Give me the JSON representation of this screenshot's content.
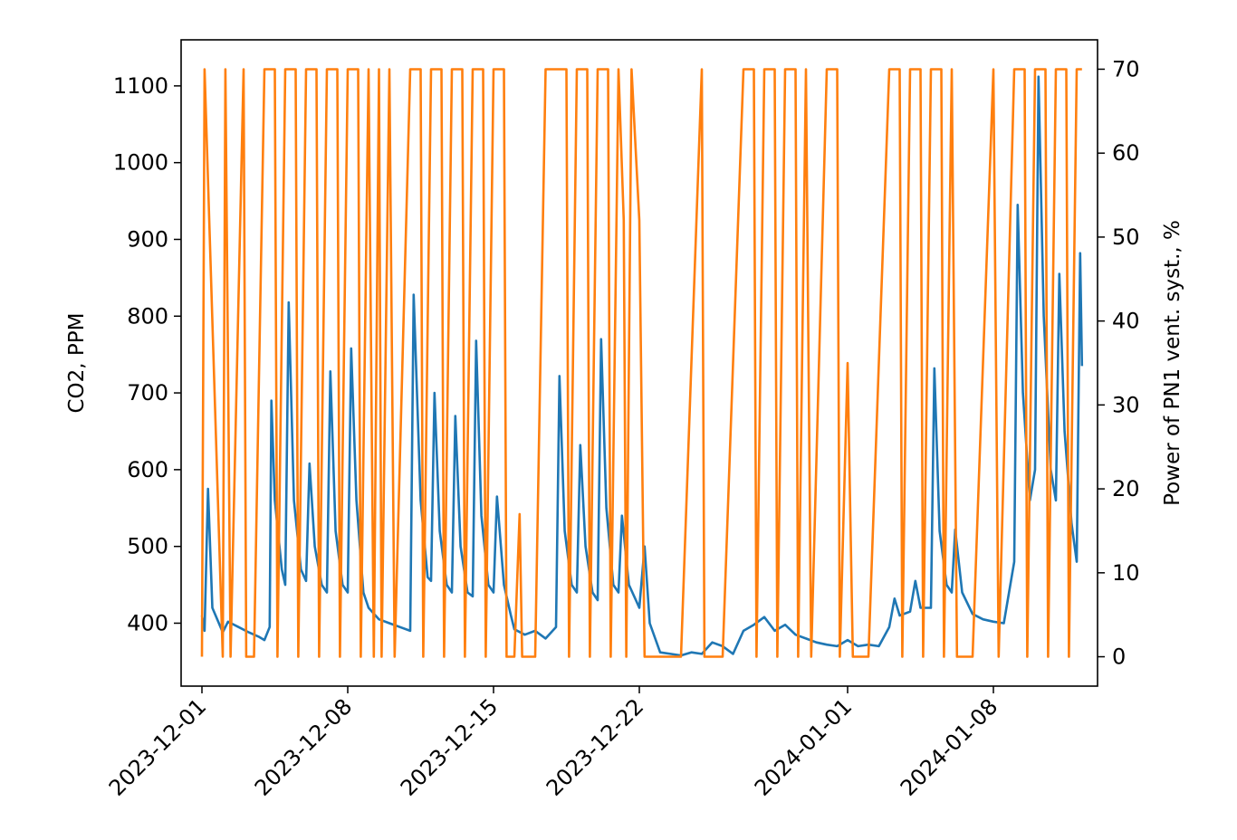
{
  "chart_data": {
    "type": "line",
    "title": "",
    "xlabel": "",
    "ylabel": "CO2, PPM",
    "y2label": "Power of PN1 vent. syst., %",
    "xlim": [
      "2023-11-30",
      "2024-01-13"
    ],
    "ylim": [
      318,
      1160
    ],
    "y2lim": [
      -3.5,
      73.5
    ],
    "x_ticks": [
      "2023-12-01",
      "2023-12-08",
      "2023-12-15",
      "2023-12-22",
      "2024-01-01",
      "2024-01-08"
    ],
    "y_ticks": [
      400,
      500,
      600,
      700,
      800,
      900,
      1000,
      1100
    ],
    "y2_ticks": [
      0,
      10,
      20,
      30,
      40,
      50,
      60,
      70
    ],
    "grid": false,
    "series": [
      {
        "axis": "left",
        "color": "#1f77b4",
        "points": [
          [
            "2023-12-01T00:00",
            410
          ],
          [
            "2023-12-01T03:00",
            390
          ],
          [
            "2023-12-01T07:00",
            575
          ],
          [
            "2023-12-01T12:00",
            420
          ],
          [
            "2023-12-02T00:00",
            388
          ],
          [
            "2023-12-02T06:00",
            402
          ],
          [
            "2023-12-02T18:00",
            395
          ],
          [
            "2023-12-03T06:00",
            388
          ],
          [
            "2023-12-03T18:00",
            382
          ],
          [
            "2023-12-04T00:00",
            378
          ],
          [
            "2023-12-04T06:00",
            395
          ],
          [
            "2023-12-04T08:00",
            690
          ],
          [
            "2023-12-04T12:00",
            560
          ],
          [
            "2023-12-04T20:00",
            470
          ],
          [
            "2023-12-05T00:00",
            450
          ],
          [
            "2023-12-05T04:00",
            818
          ],
          [
            "2023-12-05T10:00",
            560
          ],
          [
            "2023-12-05T18:00",
            470
          ],
          [
            "2023-12-06T00:00",
            455
          ],
          [
            "2023-12-06T04:00",
            608
          ],
          [
            "2023-12-06T10:00",
            500
          ],
          [
            "2023-12-06T18:00",
            450
          ],
          [
            "2023-12-07T00:00",
            440
          ],
          [
            "2023-12-07T04:00",
            728
          ],
          [
            "2023-12-07T10:00",
            520
          ],
          [
            "2023-12-07T18:00",
            450
          ],
          [
            "2023-12-08T00:00",
            440
          ],
          [
            "2023-12-08T04:00",
            758
          ],
          [
            "2023-12-08T10:00",
            560
          ],
          [
            "2023-12-08T18:00",
            440
          ],
          [
            "2023-12-09T00:00",
            420
          ],
          [
            "2023-12-09T12:00",
            405
          ],
          [
            "2023-12-10T00:00",
            400
          ],
          [
            "2023-12-10T12:00",
            395
          ],
          [
            "2023-12-11T00:00",
            390
          ],
          [
            "2023-12-11T04:00",
            828
          ],
          [
            "2023-12-11T12:00",
            560
          ],
          [
            "2023-12-11T20:00",
            460
          ],
          [
            "2023-12-12T00:00",
            455
          ],
          [
            "2023-12-12T04:00",
            700
          ],
          [
            "2023-12-12T10:00",
            520
          ],
          [
            "2023-12-12T18:00",
            450
          ],
          [
            "2023-12-13T00:00",
            440
          ],
          [
            "2023-12-13T04:00",
            670
          ],
          [
            "2023-12-13T10:00",
            500
          ],
          [
            "2023-12-13T18:00",
            440
          ],
          [
            "2023-12-14T00:00",
            435
          ],
          [
            "2023-12-14T04:00",
            768
          ],
          [
            "2023-12-14T10:00",
            540
          ],
          [
            "2023-12-14T18:00",
            450
          ],
          [
            "2023-12-15T00:00",
            440
          ],
          [
            "2023-12-15T04:00",
            565
          ],
          [
            "2023-12-15T12:00",
            450
          ],
          [
            "2023-12-15T20:00",
            410
          ],
          [
            "2023-12-16T00:00",
            392
          ],
          [
            "2023-12-16T12:00",
            385
          ],
          [
            "2023-12-17T00:00",
            390
          ],
          [
            "2023-12-17T12:00",
            380
          ],
          [
            "2023-12-18T00:00",
            395
          ],
          [
            "2023-12-18T04:00",
            722
          ],
          [
            "2023-12-18T10:00",
            520
          ],
          [
            "2023-12-18T18:00",
            450
          ],
          [
            "2023-12-19T00:00",
            440
          ],
          [
            "2023-12-19T04:00",
            632
          ],
          [
            "2023-12-19T10:00",
            500
          ],
          [
            "2023-12-19T18:00",
            440
          ],
          [
            "2023-12-20T00:00",
            430
          ],
          [
            "2023-12-20T04:00",
            770
          ],
          [
            "2023-12-20T10:00",
            550
          ],
          [
            "2023-12-20T18:00",
            450
          ],
          [
            "2023-12-21T00:00",
            440
          ],
          [
            "2023-12-21T04:00",
            540
          ],
          [
            "2023-12-21T12:00",
            450
          ],
          [
            "2023-12-21T20:00",
            430
          ],
          [
            "2023-12-22T00:00",
            420
          ],
          [
            "2023-12-22T06:00",
            500
          ],
          [
            "2023-12-22T12:00",
            400
          ],
          [
            "2023-12-23T00:00",
            362
          ],
          [
            "2023-12-23T12:00",
            360
          ],
          [
            "2023-12-24T00:00",
            358
          ],
          [
            "2023-12-24T12:00",
            362
          ],
          [
            "2023-12-25T00:00",
            360
          ],
          [
            "2023-12-25T12:00",
            375
          ],
          [
            "2023-12-26T00:00",
            370
          ],
          [
            "2023-12-26T12:00",
            360
          ],
          [
            "2023-12-27T00:00",
            390
          ],
          [
            "2023-12-27T12:00",
            398
          ],
          [
            "2023-12-28T00:00",
            408
          ],
          [
            "2023-12-28T12:00",
            390
          ],
          [
            "2023-12-29T00:00",
            398
          ],
          [
            "2023-12-29T12:00",
            385
          ],
          [
            "2023-12-30T00:00",
            380
          ],
          [
            "2023-12-30T12:00",
            375
          ],
          [
            "2023-12-31T00:00",
            372
          ],
          [
            "2023-12-31T12:00",
            370
          ],
          [
            "2024-01-01T00:00",
            378
          ],
          [
            "2024-01-01T12:00",
            370
          ],
          [
            "2024-01-02T00:00",
            372
          ],
          [
            "2024-01-02T12:00",
            370
          ],
          [
            "2024-01-03T00:00",
            395
          ],
          [
            "2024-01-03T06:00",
            432
          ],
          [
            "2024-01-03T12:00",
            410
          ],
          [
            "2024-01-04T00:00",
            415
          ],
          [
            "2024-01-04T06:00",
            455
          ],
          [
            "2024-01-04T12:00",
            420
          ],
          [
            "2024-01-05T00:00",
            420
          ],
          [
            "2024-01-05T04:00",
            732
          ],
          [
            "2024-01-05T10:00",
            520
          ],
          [
            "2024-01-05T18:00",
            450
          ],
          [
            "2024-01-06T00:00",
            440
          ],
          [
            "2024-01-06T04:00",
            522
          ],
          [
            "2024-01-06T12:00",
            440
          ],
          [
            "2024-01-07T00:00",
            412
          ],
          [
            "2024-01-07T12:00",
            405
          ],
          [
            "2024-01-08T00:00",
            402
          ],
          [
            "2024-01-08T12:00",
            400
          ],
          [
            "2024-01-09T00:00",
            480
          ],
          [
            "2024-01-09T04:00",
            945
          ],
          [
            "2024-01-09T10:00",
            700
          ],
          [
            "2024-01-09T18:00",
            560
          ],
          [
            "2024-01-10T00:00",
            600
          ],
          [
            "2024-01-10T04:00",
            1112
          ],
          [
            "2024-01-10T10:00",
            800
          ],
          [
            "2024-01-10T18:00",
            600
          ],
          [
            "2024-01-11T00:00",
            560
          ],
          [
            "2024-01-11T04:00",
            855
          ],
          [
            "2024-01-11T10:00",
            650
          ],
          [
            "2024-01-11T18:00",
            530
          ],
          [
            "2024-01-12T00:00",
            480
          ],
          [
            "2024-01-12T04:00",
            882
          ],
          [
            "2024-01-12T06:00",
            735
          ]
        ]
      },
      {
        "axis": "right",
        "color": "#ff7f0e",
        "points": [
          [
            "2023-12-01T00:00",
            0
          ],
          [
            "2023-12-01T03:00",
            70
          ],
          [
            "2023-12-02T00:00",
            0
          ],
          [
            "2023-12-02T03:00",
            70
          ],
          [
            "2023-12-02T06:00",
            35
          ],
          [
            "2023-12-02T09:00",
            0
          ],
          [
            "2023-12-03T00:00",
            70
          ],
          [
            "2023-12-03T03:00",
            0
          ],
          [
            "2023-12-03T12:00",
            0
          ],
          [
            "2023-12-04T00:00",
            70
          ],
          [
            "2023-12-04T12:00",
            70
          ],
          [
            "2023-12-04T15:00",
            0
          ],
          [
            "2023-12-05T00:00",
            70
          ],
          [
            "2023-12-05T12:00",
            70
          ],
          [
            "2023-12-05T15:00",
            0
          ],
          [
            "2023-12-06T00:00",
            70
          ],
          [
            "2023-12-06T12:00",
            70
          ],
          [
            "2023-12-06T15:00",
            0
          ],
          [
            "2023-12-07T00:00",
            70
          ],
          [
            "2023-12-07T12:00",
            70
          ],
          [
            "2023-12-07T15:00",
            0
          ],
          [
            "2023-12-08T00:00",
            70
          ],
          [
            "2023-12-08T12:00",
            70
          ],
          [
            "2023-12-08T15:00",
            0
          ],
          [
            "2023-12-09T00:00",
            70
          ],
          [
            "2023-12-09T06:00",
            0
          ],
          [
            "2023-12-09T12:00",
            70
          ],
          [
            "2023-12-09T15:00",
            0
          ],
          [
            "2023-12-10T00:00",
            70
          ],
          [
            "2023-12-10T06:00",
            0
          ],
          [
            "2023-12-11T00:00",
            70
          ],
          [
            "2023-12-11T12:00",
            70
          ],
          [
            "2023-12-11T15:00",
            0
          ],
          [
            "2023-12-12T00:00",
            70
          ],
          [
            "2023-12-12T12:00",
            70
          ],
          [
            "2023-12-12T15:00",
            0
          ],
          [
            "2023-12-13T00:00",
            70
          ],
          [
            "2023-12-13T12:00",
            70
          ],
          [
            "2023-12-13T15:00",
            0
          ],
          [
            "2023-12-14T00:00",
            70
          ],
          [
            "2023-12-14T12:00",
            70
          ],
          [
            "2023-12-14T15:00",
            0
          ],
          [
            "2023-12-15T00:00",
            70
          ],
          [
            "2023-12-15T12:00",
            70
          ],
          [
            "2023-12-15T15:00",
            0
          ],
          [
            "2023-12-16T00:00",
            0
          ],
          [
            "2023-12-16T06:00",
            17
          ],
          [
            "2023-12-16T09:00",
            0
          ],
          [
            "2023-12-17T00:00",
            0
          ],
          [
            "2023-12-17T12:00",
            70
          ],
          [
            "2023-12-18T00:00",
            70
          ],
          [
            "2023-12-18T12:00",
            70
          ],
          [
            "2023-12-18T15:00",
            0
          ],
          [
            "2023-12-19T00:00",
            70
          ],
          [
            "2023-12-19T12:00",
            70
          ],
          [
            "2023-12-19T15:00",
            0
          ],
          [
            "2023-12-20T00:00",
            70
          ],
          [
            "2023-12-20T12:00",
            70
          ],
          [
            "2023-12-20T15:00",
            0
          ],
          [
            "2023-12-21T00:00",
            70
          ],
          [
            "2023-12-21T06:00",
            52
          ],
          [
            "2023-12-21T09:00",
            0
          ],
          [
            "2023-12-21T15:00",
            70
          ],
          [
            "2023-12-22T00:00",
            52
          ],
          [
            "2023-12-22T06:00",
            0
          ],
          [
            "2023-12-23T00:00",
            0
          ],
          [
            "2023-12-24T00:00",
            0
          ],
          [
            "2023-12-25T00:00",
            70
          ],
          [
            "2023-12-25T03:00",
            0
          ],
          [
            "2023-12-26T00:00",
            0
          ],
          [
            "2023-12-27T00:00",
            70
          ],
          [
            "2023-12-27T12:00",
            70
          ],
          [
            "2023-12-27T15:00",
            0
          ],
          [
            "2023-12-28T00:00",
            70
          ],
          [
            "2023-12-28T12:00",
            70
          ],
          [
            "2023-12-28T15:00",
            0
          ],
          [
            "2023-12-29T00:00",
            70
          ],
          [
            "2023-12-29T12:00",
            70
          ],
          [
            "2023-12-29T15:00",
            0
          ],
          [
            "2023-12-30T00:00",
            70
          ],
          [
            "2023-12-30T06:00",
            0
          ],
          [
            "2023-12-31T00:00",
            70
          ],
          [
            "2023-12-31T12:00",
            70
          ],
          [
            "2023-12-31T15:00",
            0
          ],
          [
            "2024-01-01T00:00",
            35
          ],
          [
            "2024-01-01T06:00",
            0
          ],
          [
            "2024-01-02T00:00",
            0
          ],
          [
            "2024-01-03T00:00",
            70
          ],
          [
            "2024-01-03T12:00",
            70
          ],
          [
            "2024-01-03T15:00",
            0
          ],
          [
            "2024-01-04T00:00",
            70
          ],
          [
            "2024-01-04T12:00",
            70
          ],
          [
            "2024-01-04T15:00",
            0
          ],
          [
            "2024-01-05T00:00",
            70
          ],
          [
            "2024-01-05T12:00",
            70
          ],
          [
            "2024-01-05T15:00",
            0
          ],
          [
            "2024-01-06T00:00",
            70
          ],
          [
            "2024-01-06T06:00",
            0
          ],
          [
            "2024-01-07T00:00",
            0
          ],
          [
            "2024-01-08T00:00",
            70
          ],
          [
            "2024-01-08T06:00",
            0
          ],
          [
            "2024-01-09T00:00",
            70
          ],
          [
            "2024-01-09T12:00",
            70
          ],
          [
            "2024-01-09T15:00",
            0
          ],
          [
            "2024-01-10T00:00",
            70
          ],
          [
            "2024-01-10T12:00",
            70
          ],
          [
            "2024-01-10T15:00",
            0
          ],
          [
            "2024-01-11T00:00",
            70
          ],
          [
            "2024-01-11T12:00",
            70
          ],
          [
            "2024-01-11T15:00",
            0
          ],
          [
            "2024-01-12T00:00",
            70
          ],
          [
            "2024-01-12T06:00",
            70
          ]
        ]
      }
    ]
  }
}
